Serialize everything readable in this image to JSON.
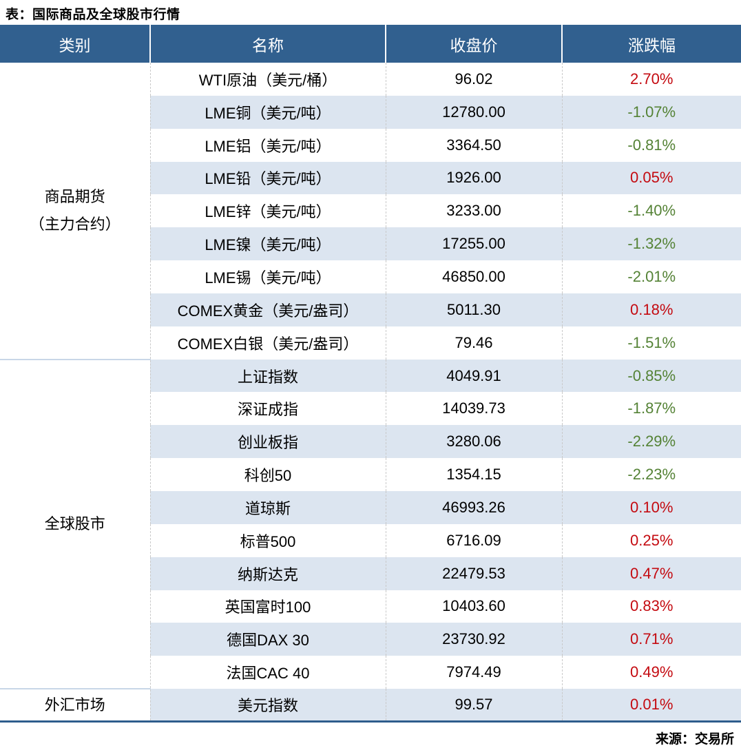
{
  "page_title": "表：国际商品及全球股市行情",
  "source_note": "来源：交易所",
  "colors": {
    "header_bg": "#31608F",
    "stripe_bg": "#DCE5F0",
    "gain_red": "#C40A10",
    "loss_green": "#548235",
    "bottom_border_blue": "#2E5D8C",
    "group_divider": "#C8D6E7"
  },
  "table": {
    "headers": [
      "类别",
      "名称",
      "收盘价",
      "涨跌幅"
    ],
    "groups": [
      {
        "category": "商品期货",
        "category_line2": "（主力合约）",
        "row_count": 9
      },
      {
        "category": "全球股市",
        "category_line2": "",
        "row_count": 10
      },
      {
        "category": "外汇市场",
        "category_line2": "",
        "row_count": 1
      }
    ],
    "rows": [
      {
        "name": "WTI原油（美元/桶）",
        "close": "96.02",
        "change": "2.70%",
        "dir": "up"
      },
      {
        "name": "LME铜（美元/吨）",
        "close": "12780.00",
        "change": "-1.07%",
        "dir": "down"
      },
      {
        "name": "LME铝（美元/吨）",
        "close": "3364.50",
        "change": "-0.81%",
        "dir": "down"
      },
      {
        "name": "LME铅（美元/吨）",
        "close": "1926.00",
        "change": "0.05%",
        "dir": "up"
      },
      {
        "name": "LME锌（美元/吨）",
        "close": "3233.00",
        "change": "-1.40%",
        "dir": "down"
      },
      {
        "name": "LME镍（美元/吨）",
        "close": "17255.00",
        "change": "-1.32%",
        "dir": "down"
      },
      {
        "name": "LME锡（美元/吨）",
        "close": "46850.00",
        "change": "-2.01%",
        "dir": "down"
      },
      {
        "name": "COMEX黄金（美元/盎司）",
        "close": "5011.30",
        "change": "0.18%",
        "dir": "up"
      },
      {
        "name": "COMEX白银（美元/盎司）",
        "close": "79.46",
        "change": "-1.51%",
        "dir": "down"
      },
      {
        "name": "上证指数",
        "close": "4049.91",
        "change": "-0.85%",
        "dir": "down"
      },
      {
        "name": "深证成指",
        "close": "14039.73",
        "change": "-1.87%",
        "dir": "down"
      },
      {
        "name": "创业板指",
        "close": "3280.06",
        "change": "-2.29%",
        "dir": "down"
      },
      {
        "name": "科创50",
        "close": "1354.15",
        "change": "-2.23%",
        "dir": "down"
      },
      {
        "name": "道琼斯",
        "close": "46993.26",
        "change": "0.10%",
        "dir": "up"
      },
      {
        "name": "标普500",
        "close": "6716.09",
        "change": "0.25%",
        "dir": "up"
      },
      {
        "name": "纳斯达克",
        "close": "22479.53",
        "change": "0.47%",
        "dir": "up"
      },
      {
        "name": "英国富时100",
        "close": "10403.60",
        "change": "0.83%",
        "dir": "up"
      },
      {
        "name": "德国DAX 30",
        "close": "23730.92",
        "change": "0.71%",
        "dir": "up"
      },
      {
        "name": "法国CAC 40",
        "close": "7974.49",
        "change": "0.49%",
        "dir": "up"
      },
      {
        "name": "美元指数",
        "close": "99.57",
        "change": "0.01%",
        "dir": "up"
      }
    ]
  },
  "chart_data": {
    "type": "table",
    "title": "表：国际商品及全球股市行情",
    "columns": [
      "类别",
      "名称",
      "收盘价",
      "涨跌幅"
    ],
    "rows": [
      [
        "商品期货（主力合约）",
        "WTI原油（美元/桶）",
        96.02,
        "2.70%"
      ],
      [
        "商品期货（主力合约）",
        "LME铜（美元/吨）",
        12780.0,
        "-1.07%"
      ],
      [
        "商品期货（主力合约）",
        "LME铝（美元/吨）",
        3364.5,
        "-0.81%"
      ],
      [
        "商品期货（主力合约）",
        "LME铅（美元/吨）",
        1926.0,
        "0.05%"
      ],
      [
        "商品期货（主力合约）",
        "LME锌（美元/吨）",
        3233.0,
        "-1.40%"
      ],
      [
        "商品期货（主力合约）",
        "LME镍（美元/吨）",
        17255.0,
        "-1.32%"
      ],
      [
        "商品期货（主力合约）",
        "LME锡（美元/吨）",
        46850.0,
        "-2.01%"
      ],
      [
        "商品期货（主力合约）",
        "COMEX黄金（美元/盎司）",
        5011.3,
        "0.18%"
      ],
      [
        "商品期货（主力合约）",
        "COMEX白银（美元/盎司）",
        79.46,
        "-1.51%"
      ],
      [
        "全球股市",
        "上证指数",
        4049.91,
        "-0.85%"
      ],
      [
        "全球股市",
        "深证成指",
        14039.73,
        "-1.87%"
      ],
      [
        "全球股市",
        "创业板指",
        3280.06,
        "-2.29%"
      ],
      [
        "全球股市",
        "科创50",
        1354.15,
        "-2.23%"
      ],
      [
        "全球股市",
        "道琼斯",
        46993.26,
        "0.10%"
      ],
      [
        "全球股市",
        "标普500",
        6716.09,
        "0.25%"
      ],
      [
        "全球股市",
        "纳斯达克",
        22479.53,
        "0.47%"
      ],
      [
        "全球股市",
        "英国富时100",
        10403.6,
        "0.83%"
      ],
      [
        "全球股市",
        "德国DAX 30",
        23730.92,
        "0.71%"
      ],
      [
        "全球股市",
        "法国CAC 40",
        7974.49,
        "0.49%"
      ],
      [
        "外汇市场",
        "美元指数",
        99.57,
        "0.01%"
      ]
    ],
    "source": "来源：交易所",
    "color_coding": {
      "positive_change": "red",
      "negative_change": "green"
    }
  }
}
